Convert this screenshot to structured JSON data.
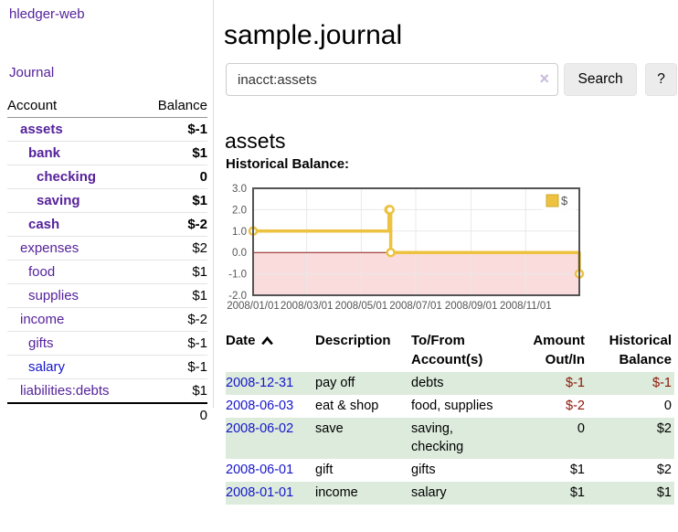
{
  "sidebar": {
    "brand": "hledger-web",
    "journal_link": "Journal",
    "table": {
      "account_header": "Account",
      "balance_header": "Balance",
      "rows": [
        {
          "name": "assets",
          "balance": "$-1",
          "level": 1,
          "emphasis": true,
          "balance_tone": "negative-strong",
          "link_color": "purple"
        },
        {
          "name": "bank",
          "balance": "$1",
          "level": 2,
          "emphasis": true,
          "balance_tone": "normal",
          "link_color": "purple"
        },
        {
          "name": "checking",
          "balance": "0",
          "level": 3,
          "emphasis": true,
          "balance_tone": "normal",
          "link_color": "purple"
        },
        {
          "name": "saving",
          "balance": "$1",
          "level": 3,
          "emphasis": true,
          "balance_tone": "normal",
          "link_color": "purple"
        },
        {
          "name": "cash",
          "balance": "$-2",
          "level": 2,
          "emphasis": true,
          "balance_tone": "negative-strong",
          "link_color": "purple"
        },
        {
          "name": "expenses",
          "balance": "$2",
          "level": 1,
          "emphasis": false,
          "balance_tone": "normal",
          "link_color": "purple"
        },
        {
          "name": "food",
          "balance": "$1",
          "level": 2,
          "emphasis": false,
          "balance_tone": "normal",
          "link_color": "purple"
        },
        {
          "name": "supplies",
          "balance": "$1",
          "level": 2,
          "emphasis": false,
          "balance_tone": "normal",
          "link_color": "purple"
        },
        {
          "name": "income",
          "balance": "$-2",
          "level": 1,
          "emphasis": false,
          "balance_tone": "negative-muted",
          "link_color": "purple"
        },
        {
          "name": "gifts",
          "balance": "$-1",
          "level": 2,
          "emphasis": false,
          "balance_tone": "negative-muted",
          "link_color": "purple"
        },
        {
          "name": "salary",
          "balance": "$-1",
          "level": 2,
          "emphasis": false,
          "balance_tone": "negative-muted",
          "link_color": "blue"
        },
        {
          "name": "liabilities:debts",
          "balance": "$1",
          "level": 1,
          "emphasis": false,
          "balance_tone": "normal",
          "link_color": "purple"
        }
      ],
      "total": "0"
    }
  },
  "main": {
    "title": "sample.journal",
    "search": {
      "value": "inacct:assets",
      "clear_icon": "×",
      "button_label": "Search",
      "help_label": "?"
    },
    "heading": "assets",
    "chart_title": "Historical Balance:",
    "register": {
      "headers": {
        "date": "Date",
        "sort_icon": "chevron-up",
        "description": "Description",
        "accounts": "To/From Account(s)",
        "amount": "Amount Out/In",
        "balance": "Historical Balance"
      },
      "rows": [
        {
          "date": "2008-12-31",
          "description": "pay off",
          "accounts": "debts",
          "amount": "$-1",
          "balance": "$-1",
          "amount_negative": true,
          "balance_negative": true,
          "shaded": true
        },
        {
          "date": "2008-06-03",
          "description": "eat & shop",
          "accounts": "food, supplies",
          "amount": "$-2",
          "balance": "0",
          "amount_negative": true,
          "balance_negative": false,
          "shaded": false
        },
        {
          "date": "2008-06-02",
          "description": "save",
          "accounts": "saving, checking",
          "amount": "0",
          "balance": "$2",
          "amount_negative": false,
          "balance_negative": false,
          "shaded": true
        },
        {
          "date": "2008-06-01",
          "description": "gift",
          "accounts": "gifts",
          "amount": "$1",
          "balance": "$2",
          "amount_negative": false,
          "balance_negative": false,
          "shaded": false
        },
        {
          "date": "2008-01-01",
          "description": "income",
          "accounts": "salary",
          "amount": "$1",
          "balance": "$1",
          "amount_negative": false,
          "balance_negative": false,
          "shaded": true
        }
      ]
    }
  },
  "chart_data": {
    "type": "line",
    "title": "Historical Balance:",
    "xlabel": "",
    "ylabel": "",
    "step": true,
    "grid": true,
    "x_range": [
      "2008-01-01",
      "2008-12-31"
    ],
    "ylim": [
      -2,
      3
    ],
    "y_ticks": [
      3.0,
      2.0,
      1.0,
      0.0,
      -1.0,
      -2.0
    ],
    "x_ticks": [
      "2008/01/01",
      "2008/03/01",
      "2008/05/01",
      "2008/07/01",
      "2008/09/01",
      "2008/11/01"
    ],
    "series": [
      {
        "name": "$",
        "color": "#edc240",
        "points": [
          [
            "2008-01-01",
            1
          ],
          [
            "2008-06-01",
            2
          ],
          [
            "2008-06-02",
            2
          ],
          [
            "2008-06-03",
            0
          ],
          [
            "2008-12-31",
            -1
          ]
        ]
      }
    ],
    "legend": {
      "label": "$",
      "position": "top-right"
    },
    "negative_region_color": "#fbdcdc",
    "zero_line_color": "#8b1a1a",
    "plot_border_color": "#545454",
    "gridline_color": "#e8e8e8",
    "tick_label_color": "#545454"
  },
  "colors": {
    "link_purple": "#55229b",
    "link_blue": "#1515cc",
    "negative_strong": "#8b1505",
    "negative_muted": "#c4767c",
    "row_stripe_green": "#dcebdc",
    "chart_gold": "#edc240",
    "chart_negative_pink": "#fbdcdc",
    "chart_zero_line": "#8b1a1a",
    "button_gray": "#ececec"
  }
}
